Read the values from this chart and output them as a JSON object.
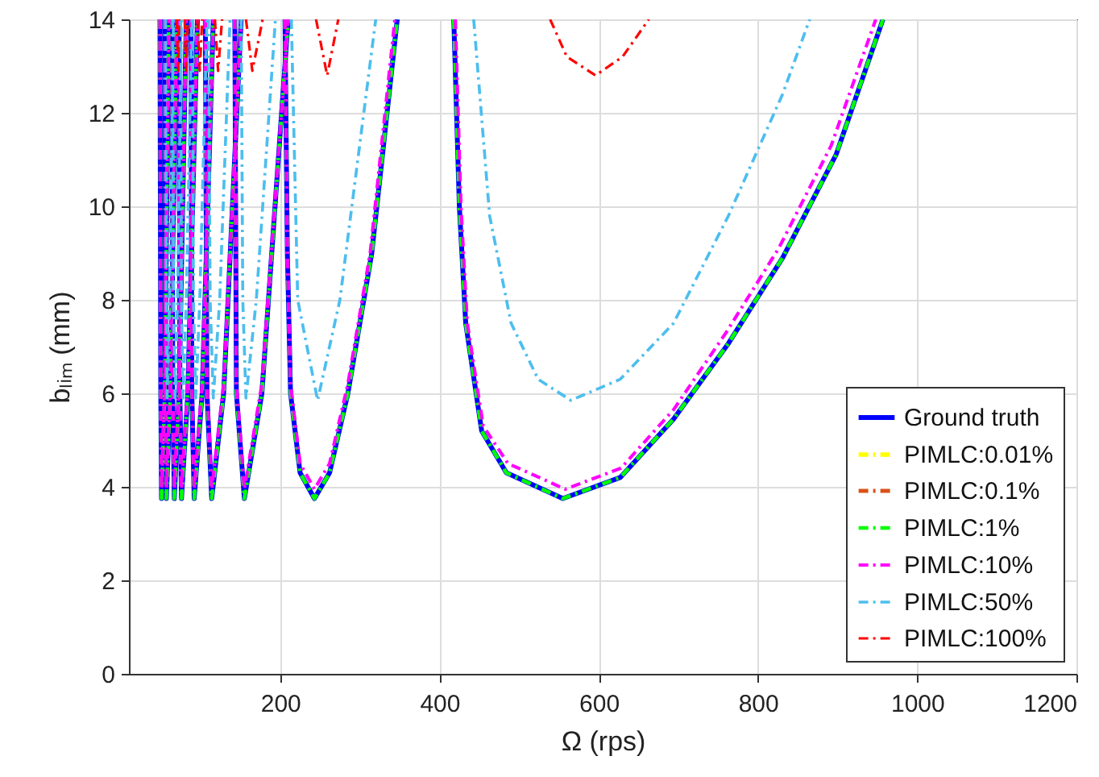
{
  "chart_data": {
    "type": "line",
    "xlabel": "Ω (rps)",
    "ylabel": "bₗᵢₘ (mm)",
    "xlim": [
      10,
      1200
    ],
    "xticks": [
      200,
      400,
      600,
      800,
      1000,
      1200
    ],
    "ylim": [
      0,
      14
    ],
    "yticks": [
      0,
      2,
      4,
      6,
      8,
      10,
      12,
      14
    ],
    "grid": true,
    "legend": "bottom right",
    "marker": "none",
    "series": [
      {
        "name": "Ground truth",
        "color": "#0000ff",
        "line_style": "solid",
        "x": [
          49,
          50,
          51,
          55,
          60,
          null,
          55,
          56,
          57,
          62,
          70,
          null,
          64,
          65,
          67,
          73,
          82,
          null,
          73,
          74,
          76,
          84,
          96,
          null,
          88,
          89,
          92,
          102,
          116,
          null,
          106,
          108,
          114,
          129,
          151,
          null,
          143,
          145,
          155,
          177,
          210,
          null,
          206,
          209,
          213,
          225,
          243,
          262,
          285,
          315,
          347,
          null,
          418,
          425,
          433,
          453,
          484,
          555,
          627,
          694,
          763,
          831,
          898,
          957
        ],
        "values": [
          14,
          6,
          3.75,
          6,
          14,
          null,
          14,
          6,
          3.75,
          6,
          14,
          null,
          14,
          6,
          3.75,
          6,
          14,
          null,
          14,
          6,
          3.75,
          6,
          14,
          null,
          14,
          6,
          3.75,
          6,
          14,
          null,
          14,
          6,
          3.75,
          6,
          14,
          null,
          14,
          6,
          3.75,
          6,
          14,
          null,
          14,
          9,
          6,
          4.3,
          3.75,
          4.3,
          6,
          9,
          14,
          null,
          14,
          10,
          7.5,
          5.2,
          4.3,
          3.75,
          4.2,
          5.45,
          7.07,
          8.9,
          11.1,
          14
        ]
      },
      {
        "name": "PIMLC:0.01%",
        "color": "#ffff00",
        "line_style": "dashed"
      },
      {
        "name": "PIMLC:0.1%",
        "color": "#d95319",
        "line_style": "dashed"
      },
      {
        "name": "PIMLC:1%",
        "color": "#00ff00",
        "line_style": "dashed",
        "x": [
          49,
          50,
          51,
          55,
          60,
          null,
          55,
          56,
          57,
          62,
          70,
          null,
          64,
          65,
          67,
          73,
          82,
          null,
          73,
          74,
          76,
          84,
          96,
          null,
          88,
          89,
          92,
          102,
          116,
          null,
          106,
          108,
          114,
          129,
          151,
          null,
          143,
          145,
          155,
          177,
          210,
          null,
          206,
          209,
          213,
          225,
          243,
          262,
          285,
          315,
          347,
          null,
          418,
          425,
          433,
          453,
          484,
          555,
          627,
          694,
          763,
          831,
          898,
          957
        ],
        "values": [
          14,
          6,
          3.75,
          6,
          14,
          null,
          14,
          6,
          3.75,
          6,
          14,
          null,
          14,
          6,
          3.75,
          6,
          14,
          null,
          14,
          6,
          3.75,
          6,
          14,
          null,
          14,
          6,
          3.75,
          6,
          14,
          null,
          14,
          6,
          3.75,
          6,
          14,
          null,
          14,
          6,
          3.75,
          6,
          14,
          null,
          14,
          9,
          6,
          4.3,
          3.75,
          4.3,
          6,
          9,
          14,
          null,
          14,
          10,
          7.5,
          5.2,
          4.3,
          3.75,
          4.2,
          5.45,
          7.07,
          8.9,
          11.1,
          14
        ]
      },
      {
        "name": "PIMLC:10%",
        "color": "#ff00ff",
        "line_style": "dashed",
        "x": [
          49,
          50,
          51,
          55,
          60,
          null,
          55,
          56,
          57,
          62,
          70,
          null,
          64,
          65,
          67,
          73,
          82,
          null,
          73,
          74,
          76,
          84,
          96,
          null,
          88,
          89,
          92,
          102,
          116,
          null,
          106,
          108,
          114,
          129,
          151,
          null,
          143,
          145,
          155,
          177,
          210,
          null,
          206,
          209,
          213,
          225,
          243,
          262,
          285,
          313,
          344,
          null,
          420,
          427,
          435,
          455,
          486,
          558,
          628,
          694,
          760,
          826,
          892,
          948
        ],
        "values": [
          14,
          6.2,
          3.95,
          6.2,
          14,
          null,
          14,
          6.2,
          3.95,
          6.2,
          14,
          null,
          14,
          6.2,
          3.95,
          6.2,
          14,
          null,
          14,
          6.2,
          3.95,
          6.2,
          14,
          null,
          14,
          6.2,
          3.95,
          6.2,
          14,
          null,
          14,
          6.2,
          3.95,
          6.2,
          14,
          null,
          14,
          6.2,
          3.95,
          6.2,
          14,
          null,
          14,
          9,
          6.2,
          4.5,
          3.95,
          4.5,
          6.2,
          9,
          14,
          null,
          14,
          10,
          7.5,
          5.3,
          4.5,
          3.95,
          4.4,
          5.65,
          7.3,
          9.1,
          11.3,
          14
        ]
      },
      {
        "name": "PIMLC:50%",
        "color": "#4dbeee",
        "line_style": "dashed",
        "x": [
          56,
          57,
          58,
          61,
          66,
          null,
          65,
          66,
          68,
          71,
          76,
          null,
          75,
          76,
          78,
          82,
          89,
          null,
          90,
          91,
          94,
          99,
          108,
          null,
          110,
          112,
          116,
          124,
          137,
          null,
          151,
          153,
          157,
          170,
          194,
          null,
          214,
          222,
          247,
          275,
          320,
          null,
          443,
          463,
          490,
          524,
          565,
          627,
          694,
          763,
          831,
          865
        ],
        "values": [
          14,
          8,
          5.9,
          8,
          14,
          null,
          14,
          8,
          5.9,
          8,
          14,
          null,
          14,
          8,
          5.9,
          8,
          14,
          null,
          14,
          8,
          5.9,
          8,
          14,
          null,
          14,
          8,
          5.9,
          8,
          14,
          null,
          14,
          8,
          5.9,
          8,
          14,
          null,
          14,
          8,
          5.85,
          8,
          14,
          null,
          14,
          9.8,
          7.5,
          6.3,
          5.85,
          6.3,
          7.5,
          9.8,
          12.4,
          14
        ]
      },
      {
        "name": "PIMLC:100%",
        "color": "#ff0000",
        "line_style": "dashed",
        "x": [
          70,
          72,
          73,
          null,
          80,
          82,
          84,
          null,
          96,
          99,
          102,
          null,
          118,
          122,
          127,
          null,
          157,
          165,
          178,
          null,
          245,
          259,
          273,
          null,
          539,
          560,
          596,
          630,
          663
        ],
        "values": [
          14,
          12.9,
          14,
          null,
          14,
          12.9,
          14,
          null,
          14,
          12.9,
          14,
          null,
          14,
          12.9,
          14,
          null,
          14,
          12.9,
          14,
          null,
          14,
          12.8,
          14,
          null,
          14,
          13.2,
          12.8,
          13.2,
          14
        ]
      }
    ]
  }
}
